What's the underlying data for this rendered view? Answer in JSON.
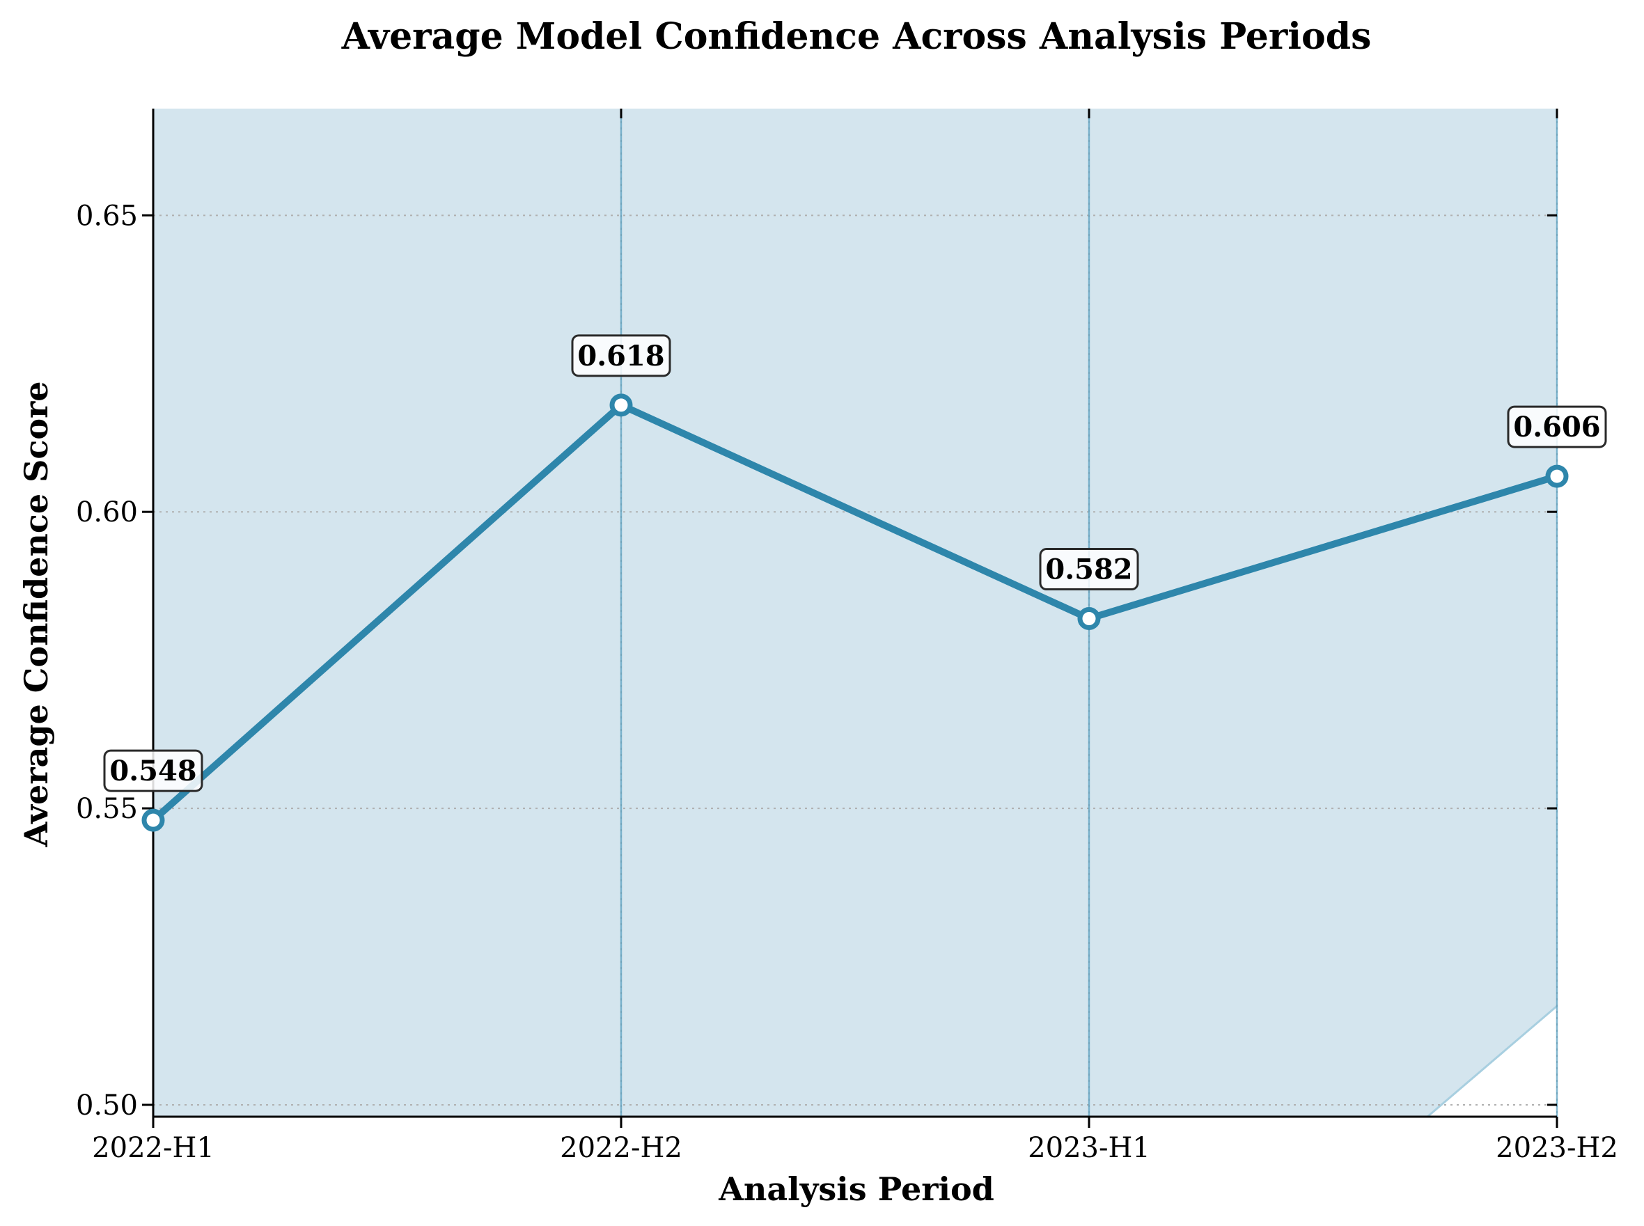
{
  "chart_data": {
    "type": "line",
    "title": "Average Model Confidence Across Analysis Periods",
    "xlabel": "Analysis Period",
    "ylabel": "Average Confidence Score",
    "categories": [
      "2022-H1",
      "2022-H2",
      "2023-H1",
      "2023-H2"
    ],
    "series": [
      {
        "values": [
          0.548,
          0.618,
          0.582,
          0.606
        ]
      }
    ],
    "data_labels": [
      "0.548",
      "0.618",
      "0.582",
      "0.606"
    ],
    "ylim": [
      0.498,
      0.668
    ],
    "yticks": [
      0.5,
      0.55,
      0.6,
      0.65
    ],
    "ytick_labels": [
      "0.50",
      "0.55",
      "0.60",
      "0.65"
    ],
    "grid": true,
    "colors": {
      "line": "#2e86ab",
      "fill": "#d4e5ee",
      "vline": "#5aa0c0",
      "grid": "#b0b0b0"
    }
  }
}
